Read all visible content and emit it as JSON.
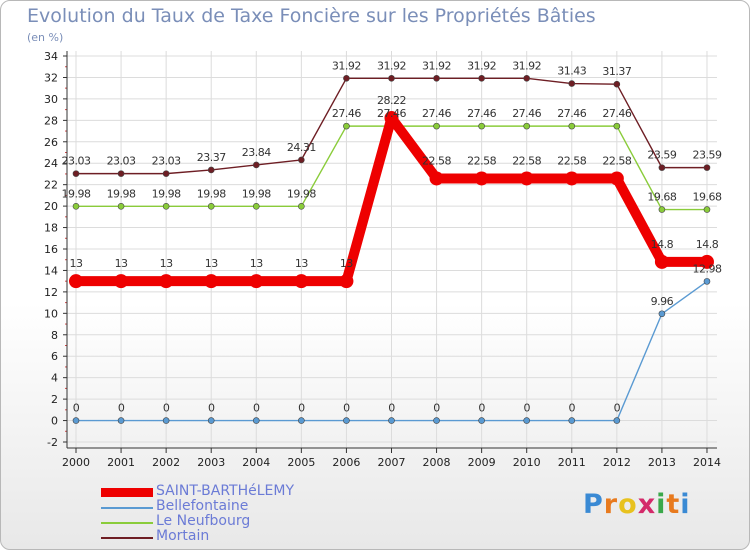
{
  "title": "Evolution du Taux de Taxe Foncière sur les Propriétés Bâties",
  "unit_label": "(en %)",
  "logo": {
    "letters": [
      "P",
      "r",
      "o",
      "x",
      "i",
      "t",
      "i"
    ],
    "colors": [
      "#3a8ad4",
      "#e87a1e",
      "#e8c21e",
      "#d42a6a",
      "#3aa84a",
      "#e87a1e",
      "#3a8ad4"
    ]
  },
  "chart_data": {
    "type": "line",
    "title": "Evolution du Taux de Taxe Foncière sur les Propriétés Bâties",
    "ylabel": "(en %)",
    "xlabel": "",
    "x": [
      "2000",
      "2001",
      "2002",
      "2003",
      "2004",
      "2005",
      "2006",
      "2007",
      "2008",
      "2009",
      "2010",
      "2011",
      "2012",
      "2013",
      "2014"
    ],
    "ylim": [
      -2,
      34
    ],
    "yticks": [
      -2,
      0,
      2,
      4,
      6,
      8,
      10,
      12,
      14,
      16,
      18,
      20,
      22,
      24,
      26,
      28,
      30,
      32,
      34
    ],
    "grid": true,
    "legend_position": "bottom-left",
    "series": [
      {
        "name": "Mortain",
        "color": "#6e1e24",
        "values": [
          23.03,
          23.03,
          23.03,
          23.37,
          23.84,
          24.31,
          31.92,
          31.92,
          31.92,
          31.92,
          31.92,
          31.43,
          31.37,
          23.59,
          23.59
        ],
        "labels": [
          "23.03",
          "23.03",
          "23.03",
          "23.37",
          "23.84",
          "24.31",
          "31.92",
          "31.92",
          "31.92",
          "31.92",
          "31.92",
          "31.43",
          "31.37",
          "23.59",
          "23.59"
        ]
      },
      {
        "name": "Le Neufbourg",
        "color": "#8acc3a",
        "values": [
          19.98,
          19.98,
          19.98,
          19.98,
          19.98,
          19.98,
          27.46,
          27.46,
          27.46,
          27.46,
          27.46,
          27.46,
          27.46,
          19.68,
          19.68
        ],
        "labels": [
          "19.98",
          "19.98",
          "19.98",
          "19.98",
          "19.98",
          "19.98",
          "27.46",
          "27.46",
          "27.46",
          "27.46",
          "27.46",
          "27.46",
          "27.46",
          "19.68",
          "19.68"
        ]
      },
      {
        "name": "Bellefontaine",
        "color": "#5a9ad2",
        "values": [
          0,
          0,
          0,
          0,
          0,
          0,
          0,
          0,
          0,
          0,
          0,
          0,
          0,
          9.96,
          12.98
        ],
        "labels": [
          "0",
          "0",
          "0",
          "0",
          "0",
          "0",
          "0",
          "0",
          "0",
          "0",
          "0",
          "0",
          "0",
          "9.96",
          "12.98"
        ]
      },
      {
        "name": "SAINT-BARTHéLEMY",
        "color": "#ee0000",
        "values": [
          13,
          13,
          13,
          13,
          13,
          13,
          13,
          28.22,
          22.58,
          22.58,
          22.58,
          22.58,
          22.58,
          14.8,
          14.8
        ],
        "labels": [
          "13",
          "13",
          "13",
          "13",
          "13",
          "13",
          "13",
          "28.22",
          "22.58",
          "22.58",
          "22.58",
          "22.58",
          "22.58",
          "14.8",
          "14.8"
        ]
      }
    ],
    "legend": [
      "SAINT-BARTHéLEMY",
      "Bellefontaine",
      "Le Neufbourg",
      "Mortain"
    ]
  }
}
